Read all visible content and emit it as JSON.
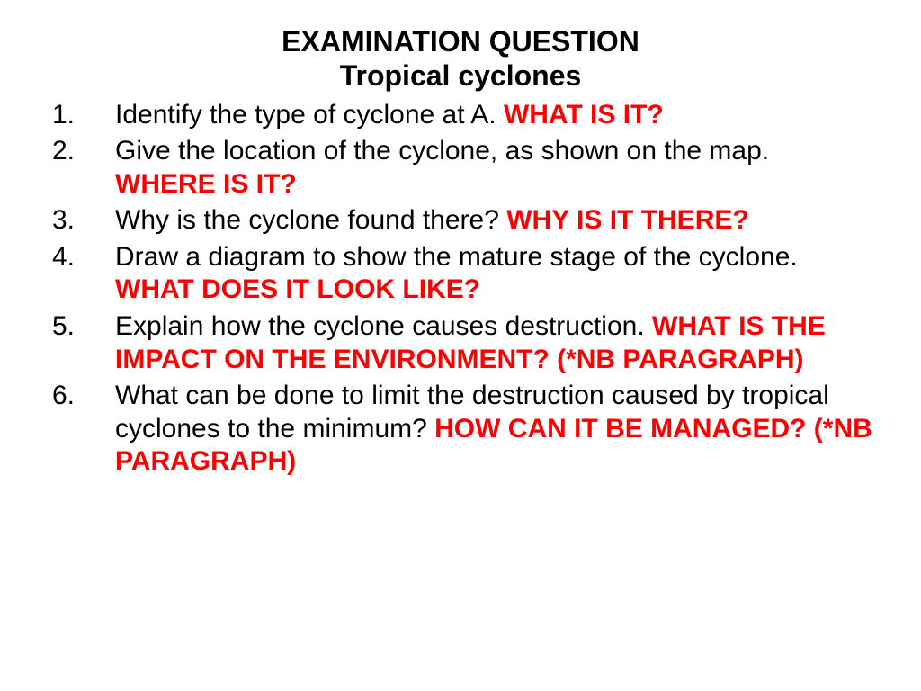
{
  "title_line1": "EXAMINATION QUESTION",
  "title_line2": "Tropical cyclones",
  "text_color": "#000000",
  "emphasis_color": "#ff0000",
  "background_color": "#ffffff",
  "font_family": "Arial",
  "title_fontsize": 32,
  "body_fontsize": 30,
  "items": [
    {
      "num": "1.",
      "text": "Identify the type of cyclone at A.  ",
      "hint": "WHAT IS IT?"
    },
    {
      "num": "2.",
      "text": "Give the location of the cyclone, as shown on the map. ",
      "hint": "WHERE IS IT?"
    },
    {
      "num": "3.",
      "text": "Why is the cyclone found there? ",
      "hint": "WHY IS IT THERE?"
    },
    {
      "num": "4.",
      "text": "Draw a diagram to show the mature stage of the cyclone. ",
      "hint": "WHAT DOES IT LOOK LIKE?"
    },
    {
      "num": "5.",
      "text": "Explain how the cyclone causes destruction. ",
      "hint": "WHAT IS THE IMPACT ON THE ENVIRONMENT? (*NB PARAGRAPH)"
    },
    {
      "num": "6.",
      "text": "What can be done to limit the destruction caused by tropical cyclones to the minimum?  ",
      "hint": "HOW CAN IT BE MANAGED? (*NB PARAGRAPH)"
    }
  ]
}
